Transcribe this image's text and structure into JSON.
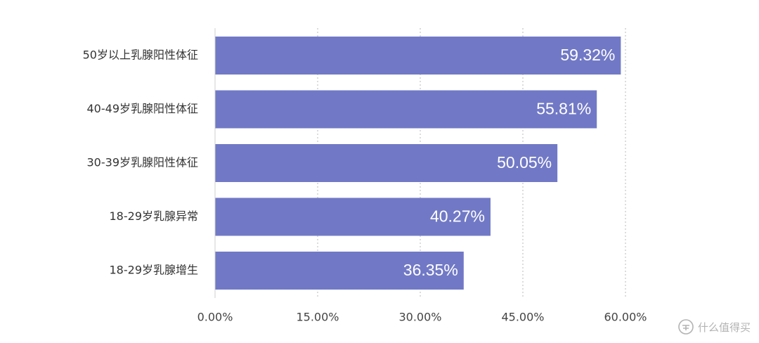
{
  "chart_data": {
    "type": "bar",
    "orientation": "horizontal",
    "categories": [
      "50岁以上乳腺阳性体征",
      "40-49岁乳腺阳性体征",
      "30-39岁乳腺阳性体征",
      "18-29岁乳腺异常",
      "18-29岁乳腺增生"
    ],
    "values": [
      59.32,
      55.81,
      50.05,
      40.27,
      36.35
    ],
    "value_labels": [
      "59.32%",
      "55.81%",
      "50.05%",
      "40.27%",
      "36.35%"
    ],
    "x_ticks": [
      0,
      15,
      30,
      45,
      60
    ],
    "x_tick_labels": [
      "0.00%",
      "15.00%",
      "30.00%",
      "45.00%",
      "60.00%"
    ],
    "xlim": [
      0,
      60
    ],
    "grid": "vertical dotted",
    "bar_color": "#7179c6",
    "title": "",
    "xlabel": "",
    "ylabel": ""
  },
  "watermark": {
    "text": "什么值得买",
    "icon": "smzdm-logo-icon"
  }
}
